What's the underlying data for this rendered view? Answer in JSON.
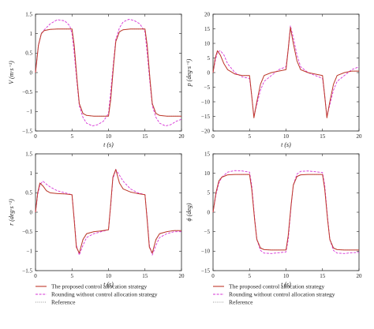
{
  "chart_data": [
    {
      "type": "line",
      "ylabel": "V (m·s⁻¹)",
      "xlabel": "t (s)",
      "xlim": [
        0,
        20
      ],
      "ylim": [
        -1.5,
        1.5
      ],
      "xticks": [
        "0",
        "5",
        "10",
        "15",
        "20"
      ],
      "yticks": [
        "1.5",
        "1",
        "0.5",
        "0",
        "−0.5",
        "−1",
        "−1.5"
      ],
      "series": [
        {
          "name": "The proposed control allocation strategy",
          "color": "#c0392b",
          "x": [
            0,
            0.4,
            0.8,
            1.2,
            2,
            3,
            4,
            5,
            5.3,
            5.7,
            6,
            6.5,
            7,
            8,
            9,
            10,
            10.3,
            10.7,
            11,
            11.5,
            12,
            13,
            14,
            15,
            15.3,
            15.7,
            16,
            16.5,
            17,
            18,
            19,
            20
          ],
          "y": [
            0,
            0.7,
            1.0,
            1.08,
            1.11,
            1.12,
            1.12,
            1.12,
            0.7,
            -0.2,
            -0.8,
            -1.05,
            -1.1,
            -1.12,
            -1.12,
            -1.12,
            -0.7,
            0.2,
            0.8,
            1.05,
            1.1,
            1.12,
            1.12,
            1.12,
            0.7,
            -0.2,
            -0.8,
            -1.05,
            -1.1,
            -1.12,
            -1.12,
            -1.12
          ]
        },
        {
          "name": "Rounding without control allocation strategy",
          "color": "#d633d6",
          "x": [
            0,
            0.4,
            0.8,
            1.2,
            2,
            3,
            4,
            4.7,
            5,
            5.3,
            5.7,
            6,
            6.5,
            7,
            7.8,
            8.5,
            9.3,
            10,
            10.3,
            10.7,
            11,
            11.5,
            12,
            12.8,
            13.5,
            14.3,
            15,
            15.3,
            15.7,
            16,
            16.5,
            17,
            17.8,
            18.5,
            19.3,
            20
          ],
          "y": [
            0,
            0.7,
            1.0,
            1.1,
            1.25,
            1.36,
            1.33,
            1.2,
            1.0,
            0.5,
            -0.3,
            -0.85,
            -1.15,
            -1.3,
            -1.37,
            -1.34,
            -1.25,
            -1.05,
            -0.5,
            0.3,
            0.85,
            1.15,
            1.3,
            1.37,
            1.34,
            1.25,
            1.05,
            0.5,
            -0.3,
            -0.85,
            -1.15,
            -1.3,
            -1.37,
            -1.34,
            -1.25,
            -1.2
          ]
        },
        {
          "name": "Reference",
          "color": "#999999",
          "x": [
            0,
            0.4,
            0.8,
            1.2,
            2,
            3,
            4,
            5,
            5.3,
            5.7,
            6,
            6.5,
            7,
            8,
            9,
            10,
            10.3,
            10.7,
            11,
            11.5,
            12,
            13,
            14,
            15,
            15.3,
            15.7,
            16,
            16.5,
            17,
            18,
            19,
            20
          ],
          "y": [
            0,
            0.72,
            1.02,
            1.09,
            1.11,
            1.12,
            1.12,
            1.12,
            0.72,
            -0.18,
            -0.78,
            -1.04,
            -1.1,
            -1.12,
            -1.12,
            -1.12,
            -0.72,
            0.18,
            0.78,
            1.04,
            1.1,
            1.12,
            1.12,
            1.12,
            0.72,
            -0.18,
            -0.78,
            -1.04,
            -1.1,
            -1.12,
            -1.12,
            -1.12
          ]
        }
      ]
    },
    {
      "type": "line",
      "ylabel": "p (deg·s⁻¹)",
      "xlabel": "t (s)",
      "xlim": [
        0,
        20
      ],
      "ylim": [
        -20,
        20
      ],
      "xticks": [
        "0",
        "5",
        "10",
        "15",
        "20"
      ],
      "yticks": [
        "20",
        "15",
        "10",
        "5",
        "0",
        "−5",
        "−10",
        "−15",
        "−20"
      ],
      "series": [
        {
          "name": "The proposed control allocation strategy",
          "color": "#c0392b",
          "x": [
            0,
            0.3,
            0.6,
            1,
            1.5,
            2,
            3,
            4,
            5,
            5.3,
            5.6,
            6,
            6.5,
            7,
            8,
            9,
            10,
            10.3,
            10.6,
            11,
            11.5,
            12,
            13,
            14,
            15,
            15.3,
            15.6,
            16,
            16.5,
            17,
            18,
            19,
            20
          ],
          "y": [
            0,
            5,
            7.5,
            6,
            3,
            1,
            -0.5,
            -1,
            -1,
            -8,
            -15.5,
            -10,
            -4,
            -1,
            0,
            0.5,
            1,
            8,
            15.5,
            10,
            4,
            1,
            0,
            -0.5,
            -1,
            -8,
            -15.5,
            -10,
            -4,
            -1,
            0,
            0.5,
            0.5
          ]
        },
        {
          "name": "Rounding without control allocation strategy",
          "color": "#d633d6",
          "x": [
            0,
            0.3,
            0.6,
            1,
            1.5,
            2,
            3,
            4,
            5,
            5.3,
            5.6,
            6,
            6.5,
            7,
            8,
            9,
            10,
            10.3,
            10.6,
            11,
            11.5,
            12,
            13,
            14,
            15,
            15.3,
            15.6,
            16,
            16.5,
            17,
            18,
            19,
            20
          ],
          "y": [
            0,
            4,
            7,
            7.5,
            6,
            3,
            0,
            -1.5,
            -2,
            -8,
            -15,
            -11,
            -6,
            -3,
            -1,
            1,
            2,
            8,
            16,
            12,
            6,
            2,
            0,
            -1,
            -2,
            -8,
            -15,
            -11,
            -6,
            -3,
            -1,
            1,
            2
          ]
        },
        {
          "name": "Reference",
          "color": "#999999",
          "x": [
            0,
            0.3,
            0.6,
            1,
            1.5,
            2,
            3,
            4,
            5,
            5.3,
            5.6,
            6,
            6.5,
            7,
            8,
            9,
            10,
            10.3,
            10.6,
            11,
            11.5,
            12,
            13,
            14,
            15,
            15.3,
            15.6,
            16,
            16.5,
            17,
            18,
            19,
            20
          ],
          "y": [
            0,
            5,
            7.2,
            6,
            3,
            1,
            -0.5,
            -1,
            -1,
            -7.5,
            -15,
            -10,
            -4,
            -1,
            0,
            0.5,
            1,
            7.5,
            15,
            10,
            4,
            1,
            0,
            -0.5,
            -1,
            -7.5,
            -15,
            -10,
            -4,
            -1,
            0,
            0.5,
            0.5
          ]
        }
      ]
    },
    {
      "type": "line",
      "ylabel": "r (deg·s⁻¹)",
      "xlabel": "t (s)",
      "xlim": [
        0,
        20
      ],
      "ylim": [
        -1.5,
        1.5
      ],
      "xticks": [
        "0",
        "5",
        "10",
        "15",
        "20"
      ],
      "yticks": [
        "1.5",
        "1",
        "0.5",
        "0",
        "−0.5",
        "−1",
        "−1.5"
      ],
      "series": [
        {
          "name": "The proposed control allocation strategy",
          "color": "#c0392b",
          "x": [
            0,
            0.3,
            0.6,
            1,
            1.5,
            2,
            3,
            4,
            5,
            5.3,
            5.6,
            6,
            6.5,
            7,
            8,
            9,
            10,
            10.3,
            10.6,
            11,
            11.5,
            12,
            13,
            14,
            15,
            15.3,
            15.6,
            16,
            16.5,
            17,
            18,
            19,
            20
          ],
          "y": [
            0,
            0.5,
            0.75,
            0.68,
            0.55,
            0.5,
            0.48,
            0.47,
            0.45,
            -0.2,
            -0.9,
            -1.05,
            -0.7,
            -0.55,
            -0.5,
            -0.48,
            -0.45,
            0.2,
            0.9,
            1.1,
            0.75,
            0.6,
            0.52,
            0.48,
            0.45,
            -0.2,
            -0.9,
            -1.05,
            -0.7,
            -0.55,
            -0.5,
            -0.47,
            -0.47
          ]
        },
        {
          "name": "Rounding without control allocation strategy",
          "color": "#d633d6",
          "x": [
            0,
            0.3,
            0.6,
            1,
            1.5,
            2,
            3,
            4,
            5,
            5.3,
            5.6,
            6,
            6.5,
            7,
            8,
            9,
            10,
            10.3,
            10.6,
            11,
            11.5,
            12,
            13,
            14,
            15,
            15.3,
            15.6,
            16,
            16.5,
            17,
            18,
            19,
            20
          ],
          "y": [
            0,
            0.45,
            0.7,
            0.8,
            0.72,
            0.65,
            0.55,
            0.5,
            0.45,
            -0.15,
            -0.85,
            -1.1,
            -0.85,
            -0.65,
            -0.55,
            -0.5,
            -0.45,
            0.15,
            0.85,
            1.1,
            0.95,
            0.8,
            0.6,
            0.5,
            0.45,
            -0.15,
            -0.85,
            -1.1,
            -0.85,
            -0.65,
            -0.55,
            -0.5,
            -0.5
          ]
        },
        {
          "name": "Reference",
          "color": "#999999",
          "x": [
            0,
            0.3,
            0.6,
            1,
            1.5,
            2,
            3,
            4,
            5,
            5.3,
            5.6,
            6,
            6.5,
            7,
            8,
            9,
            10,
            10.3,
            10.6,
            11,
            11.5,
            12,
            13,
            14,
            15,
            15.3,
            15.6,
            16,
            16.5,
            17,
            18,
            19,
            20
          ],
          "y": [
            0,
            0.5,
            0.72,
            0.68,
            0.56,
            0.5,
            0.48,
            0.47,
            0.45,
            -0.2,
            -0.88,
            -1.04,
            -0.72,
            -0.56,
            -0.5,
            -0.48,
            -0.45,
            0.2,
            0.88,
            1.08,
            0.76,
            0.6,
            0.52,
            0.48,
            0.45,
            -0.2,
            -0.88,
            -1.04,
            -0.72,
            -0.56,
            -0.5,
            -0.47,
            -0.47
          ]
        }
      ]
    },
    {
      "type": "line",
      "ylabel": "ϕ (deg)",
      "xlabel": "t (s)",
      "xlim": [
        0,
        20
      ],
      "ylim": [
        -15,
        15
      ],
      "xticks": [
        "0",
        "5",
        "10",
        "15",
        "20"
      ],
      "yticks": [
        "15",
        "10",
        "5",
        "0",
        "−5",
        "−10",
        "−15"
      ],
      "series": [
        {
          "name": "The proposed control allocation strategy",
          "color": "#c0392b",
          "x": [
            0,
            0.4,
            0.8,
            1.2,
            2,
            3,
            4,
            5,
            5.3,
            5.7,
            6,
            6.5,
            7,
            8,
            9,
            10,
            10.3,
            10.7,
            11,
            11.5,
            12,
            13,
            14,
            15,
            15.3,
            15.7,
            16,
            16.5,
            17,
            18,
            19,
            20
          ],
          "y": [
            0,
            5,
            8,
            9,
            9.6,
            9.7,
            9.7,
            9.7,
            6,
            -2,
            -7,
            -9.2,
            -9.6,
            -9.7,
            -9.7,
            -9.7,
            -6,
            2,
            7,
            9.2,
            9.6,
            9.7,
            9.7,
            9.7,
            6,
            -2,
            -7,
            -9.2,
            -9.6,
            -9.7,
            -9.7,
            -9.7
          ]
        },
        {
          "name": "Rounding without control allocation strategy",
          "color": "#d633d6",
          "x": [
            0,
            0.4,
            0.8,
            1.2,
            2,
            3,
            4,
            5,
            5.3,
            5.7,
            6,
            6.5,
            7,
            8,
            9,
            10,
            10.3,
            10.7,
            11,
            11.5,
            12,
            13,
            14,
            15,
            15.3,
            15.7,
            16,
            16.5,
            17,
            18,
            19,
            20
          ],
          "y": [
            0,
            4.5,
            7.5,
            9,
            10.3,
            10.7,
            10.6,
            10.3,
            7,
            -1.5,
            -7,
            -9.8,
            -10.5,
            -10.6,
            -10.4,
            -10.2,
            -7,
            1.5,
            7,
            9.8,
            10.5,
            10.6,
            10.4,
            10.2,
            7,
            -1.5,
            -7,
            -9.8,
            -10.5,
            -10.6,
            -10.4,
            -10.3
          ]
        },
        {
          "name": "Reference",
          "color": "#999999",
          "x": [
            0,
            0.4,
            0.8,
            1.2,
            2,
            3,
            4,
            5,
            5.3,
            5.7,
            6,
            6.5,
            7,
            8,
            9,
            10,
            10.3,
            10.7,
            11,
            11.5,
            12,
            13,
            14,
            15,
            15.3,
            15.7,
            16,
            16.5,
            17,
            18,
            19,
            20
          ],
          "y": [
            0,
            5.2,
            8.2,
            9.1,
            9.6,
            9.7,
            9.7,
            9.7,
            6.2,
            -1.8,
            -6.8,
            -9.1,
            -9.6,
            -9.7,
            -9.7,
            -9.7,
            -6.2,
            1.8,
            6.8,
            9.1,
            9.6,
            9.7,
            9.7,
            9.7,
            6.2,
            -1.8,
            -6.8,
            -9.1,
            -9.6,
            -9.7,
            -9.7,
            -9.7
          ]
        }
      ]
    }
  ],
  "legend": {
    "entries": [
      {
        "label": "The proposed control allocation strategy",
        "color": "#c0392b",
        "style": "solid"
      },
      {
        "label": "Rounding without control allocation strategy",
        "color": "#d633d6",
        "style": "dashed"
      },
      {
        "label": "Reference",
        "color": "#999999",
        "style": "dotted"
      }
    ]
  }
}
